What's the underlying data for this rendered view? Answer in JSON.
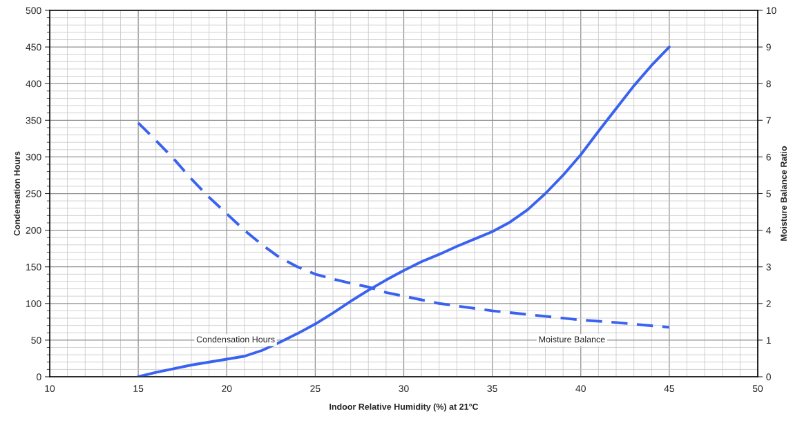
{
  "chart_data": {
    "type": "line",
    "xlabel": "Indoor Relative Humidity (%) at 21°C",
    "ylabel": "Condensation Hours",
    "y2label": "Moisture Balance Ratio",
    "series": [
      {
        "name": "Condensation Hours",
        "color": "#3a62f0",
        "line_style": "solid",
        "x": [
          15,
          16,
          17,
          18,
          19,
          20,
          21,
          22,
          23,
          24,
          25,
          26,
          27,
          28,
          29,
          30,
          31,
          32,
          33,
          34,
          35,
          36,
          37,
          38,
          39,
          40,
          41,
          42,
          43,
          44,
          45
        ],
        "values": [
          0,
          6,
          11,
          16,
          20,
          24,
          28,
          36,
          47,
          59,
          72,
          87,
          103,
          118,
          132,
          145,
          157,
          167,
          178,
          188,
          198,
          211,
          228,
          250,
          275,
          303,
          335,
          366,
          397,
          425,
          450
        ]
      },
      {
        "name": "Moisture Balance",
        "color": "#3a62f0",
        "line_style": "dashed",
        "axis": "y2",
        "x": [
          15,
          16,
          17,
          18,
          19,
          20,
          21,
          22,
          23,
          24,
          25,
          26,
          27,
          28,
          29,
          30,
          32,
          35,
          38,
          40,
          42,
          45
        ],
        "values": [
          6.93,
          6.45,
          5.95,
          5.4,
          4.9,
          4.45,
          4.0,
          3.6,
          3.25,
          3.0,
          2.8,
          2.67,
          2.55,
          2.45,
          2.3,
          2.2,
          2.0,
          1.8,
          1.65,
          1.55,
          1.48,
          1.35
        ]
      }
    ],
    "xlim": [
      10,
      50
    ],
    "xticks": [
      10,
      15,
      20,
      25,
      30,
      35,
      40,
      45,
      50
    ],
    "ylim": [
      0,
      500
    ],
    "yticks": [
      0,
      50,
      100,
      150,
      200,
      250,
      300,
      350,
      400,
      450,
      500
    ],
    "y2lim": [
      0,
      10
    ],
    "y2ticks": [
      0,
      1,
      2,
      3,
      4,
      5,
      6,
      7,
      8,
      9,
      10
    ],
    "grid": true,
    "legend": false,
    "marker": "none"
  }
}
